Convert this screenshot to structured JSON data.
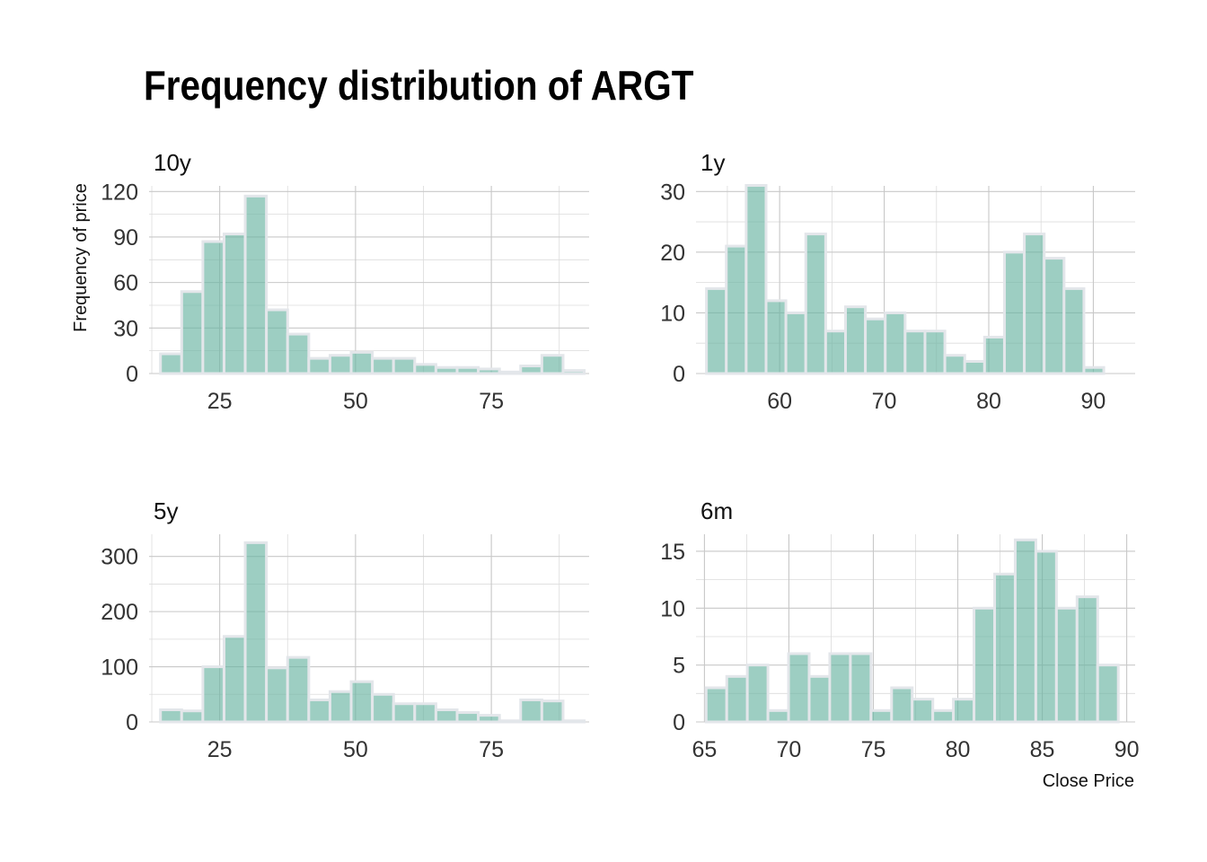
{
  "chart_data": {
    "type": "bar",
    "title": "Frequency distribution of ARGT",
    "xlabel": "Close Price",
    "ylabel": "Frequency of price",
    "style": {
      "bar_color": "#69b3a2",
      "bar_edge": "#e3e6ea",
      "grid_color": "#c8c8c8"
    },
    "panels": [
      {
        "name": "10y",
        "xlim": [
          12,
          93
        ],
        "ylim": [
          0,
          120
        ],
        "xticks": [
          25,
          50,
          75
        ],
        "yticks": [
          0,
          30,
          60,
          90,
          120
        ],
        "bin_start": 14.1,
        "bin_width": 3.9,
        "values": [
          13,
          54,
          87,
          92,
          117,
          42,
          26,
          10,
          12,
          14,
          10,
          10,
          6,
          4,
          4,
          3,
          1,
          5,
          12,
          2
        ]
      },
      {
        "name": "1y",
        "xlim": [
          52,
          94
        ],
        "ylim": [
          0,
          30
        ],
        "xticks": [
          60,
          70,
          80,
          90
        ],
        "yticks": [
          0,
          10,
          20,
          30
        ],
        "bin_start": 53,
        "bin_width": 1.9,
        "values": [
          14,
          21,
          31,
          12,
          10,
          23,
          7,
          11,
          9,
          10,
          7,
          7,
          3,
          2,
          6,
          20,
          23,
          19,
          14,
          1
        ]
      },
      {
        "name": "5y",
        "xlim": [
          12,
          93
        ],
        "ylim": [
          0,
          330
        ],
        "xticks": [
          25,
          50,
          75
        ],
        "yticks": [
          0,
          100,
          200,
          300
        ],
        "bin_start": 14.1,
        "bin_width": 3.9,
        "values": [
          22,
          20,
          100,
          155,
          325,
          98,
          117,
          40,
          55,
          73,
          50,
          33,
          33,
          22,
          17,
          12,
          2,
          40,
          38,
          2
        ]
      },
      {
        "name": "6m",
        "xlim": [
          64.5,
          90.5
        ],
        "ylim": [
          0,
          16
        ],
        "xticks": [
          65,
          70,
          75,
          80,
          85,
          90
        ],
        "yticks": [
          0,
          5,
          10,
          15
        ],
        "bin_start": 65.1,
        "bin_width": 1.22,
        "values": [
          3,
          4,
          5,
          1,
          6,
          4,
          6,
          6,
          1,
          3,
          2,
          1,
          2,
          10,
          13,
          16,
          15,
          10,
          11,
          5
        ]
      }
    ]
  }
}
